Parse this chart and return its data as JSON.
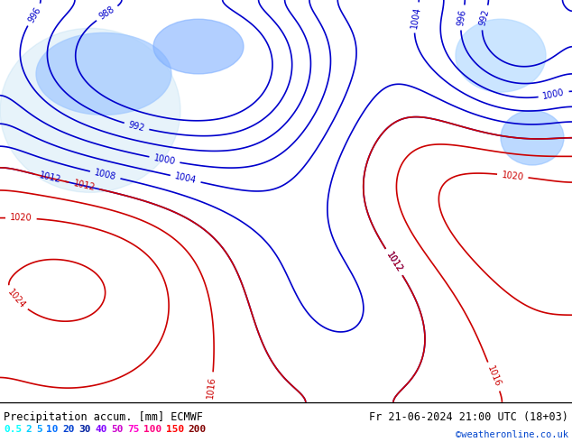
{
  "title_left": "Precipitation accum. [mm] ECMWF",
  "title_right": "Fr 21-06-2024 21:00 UTC (18+03)",
  "copyright": "©weatheronline.co.uk",
  "legend_values": [
    "0.5",
    "2",
    "5",
    "10",
    "20",
    "30",
    "40",
    "50",
    "75",
    "100",
    "150",
    "200"
  ],
  "legend_colors": [
    "#00ffff",
    "#00d0ff",
    "#00a0ff",
    "#0070ff",
    "#0040d0",
    "#0020a0",
    "#8000ff",
    "#cc00cc",
    "#ff00cc",
    "#ff0080",
    "#ff0000",
    "#800000"
  ],
  "bg_color": "#c8e8c0",
  "map_bg": "#c8e8c0",
  "bottom_bar_color": "#000000",
  "text_color": "#000000",
  "figure_width": 6.34,
  "figure_height": 4.9,
  "dpi": 100
}
